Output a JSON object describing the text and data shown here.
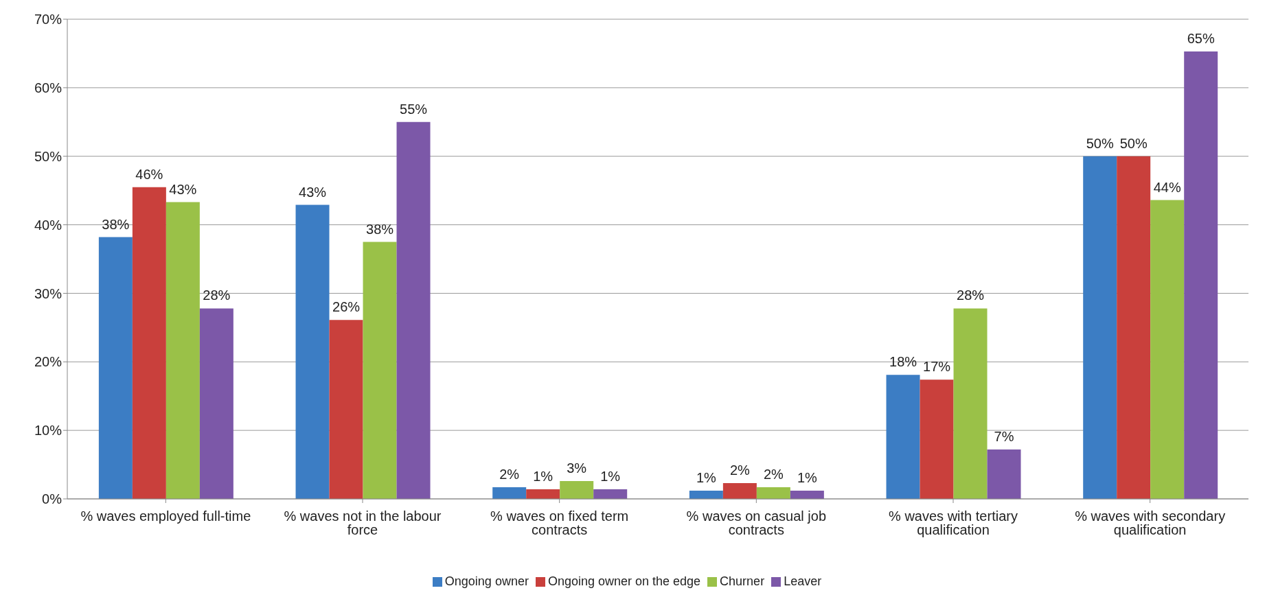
{
  "chart_data": {
    "type": "bar",
    "categories": [
      "% waves employed full-time",
      "% waves not in the labour force",
      "% waves on fixed term contracts",
      "% waves on casual job contracts",
      "% waves with tertiary qualification",
      "% waves with secondary qualification"
    ],
    "series": [
      {
        "name": "Ongoing owner",
        "color": "#3c7dc4",
        "values": [
          38.2,
          42.9,
          1.7,
          1.2,
          18.1,
          50.0
        ],
        "value_labels": [
          "38%",
          "43%",
          "2%",
          "1%",
          "18%",
          "50%"
        ]
      },
      {
        "name": "Ongoing owner on the edge",
        "color": "#c9403c",
        "values": [
          45.5,
          26.1,
          1.4,
          2.3,
          17.4,
          50.0
        ],
        "value_labels": [
          "46%",
          "26%",
          "1%",
          "2%",
          "17%",
          "50%"
        ]
      },
      {
        "name": "Churner",
        "color": "#9ac148",
        "values": [
          43.3,
          37.5,
          2.6,
          1.7,
          27.8,
          43.6
        ],
        "value_labels": [
          "43%",
          "38%",
          "3%",
          "2%",
          "28%",
          "44%"
        ]
      },
      {
        "name": "Leaver",
        "color": "#7c58a8",
        "values": [
          27.8,
          55.0,
          1.4,
          1.2,
          7.2,
          65.3
        ],
        "value_labels": [
          "28%",
          "55%",
          "1%",
          "1%",
          "7%",
          "65%"
        ]
      }
    ],
    "ylim": [
      0,
      70
    ],
    "yticks": [
      {
        "value": 0,
        "label": "0%"
      },
      {
        "value": 10,
        "label": "10%"
      },
      {
        "value": 20,
        "label": "20%"
      },
      {
        "value": 30,
        "label": "30%"
      },
      {
        "value": 40,
        "label": "40%"
      },
      {
        "value": 50,
        "label": "50%"
      },
      {
        "value": 60,
        "label": "60%"
      },
      {
        "value": 70,
        "label": "70%"
      }
    ],
    "grid": "y",
    "legend": "bottom"
  }
}
